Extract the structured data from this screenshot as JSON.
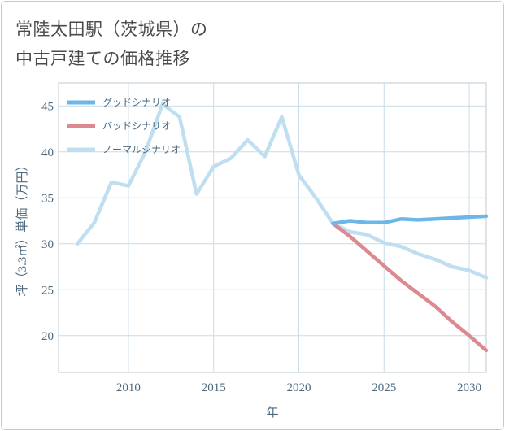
{
  "title": {
    "line1": "常陸太田駅（茨城県）の",
    "line2": "中古戸建ての価格推移"
  },
  "chart_data": {
    "type": "line",
    "xlabel": "年",
    "ylabel": "坪（3.3㎡）単価（万円）",
    "xlim": [
      2005.9,
      2031
    ],
    "ylim": [
      16,
      47.5
    ],
    "xticks": [
      2010,
      2015,
      2020,
      2025,
      2030
    ],
    "yticks": [
      20,
      25,
      30,
      35,
      40,
      45
    ],
    "grid": true,
    "legend_position": "top-left",
    "series": [
      {
        "name": "グッドシナリオ",
        "color": "#6cb7ea",
        "x": [
          2022,
          2023,
          2024,
          2025,
          2026,
          2027,
          2028,
          2029,
          2030,
          2031
        ],
        "y": [
          32.2,
          32.5,
          32.3,
          32.3,
          32.7,
          32.6,
          32.7,
          32.8,
          32.9,
          33.0
        ]
      },
      {
        "name": "バッドシナリオ",
        "color": "#dc8a90",
        "x": [
          2022,
          2023,
          2024,
          2025,
          2026,
          2027,
          2028,
          2029,
          2030,
          2031
        ],
        "y": [
          32.2,
          30.8,
          29.2,
          27.6,
          26.0,
          24.6,
          23.2,
          21.5,
          20.0,
          18.4
        ]
      },
      {
        "name": "ノーマルシナリオ",
        "color": "#bfdff0",
        "x": [
          2007,
          2008,
          2009,
          2010,
          2011,
          2012,
          2013,
          2014,
          2015,
          2016,
          2017,
          2018,
          2019,
          2020,
          2021,
          2022,
          2023,
          2024,
          2025,
          2026,
          2027,
          2028,
          2029,
          2030,
          2031
        ],
        "y": [
          30.0,
          32.3,
          36.7,
          36.3,
          40.0,
          45.2,
          43.8,
          35.4,
          38.4,
          39.3,
          41.3,
          39.5,
          43.8,
          37.5,
          35.0,
          32.2,
          31.3,
          31.0,
          30.1,
          29.7,
          28.9,
          28.3,
          27.5,
          27.1,
          26.3
        ]
      }
    ]
  }
}
